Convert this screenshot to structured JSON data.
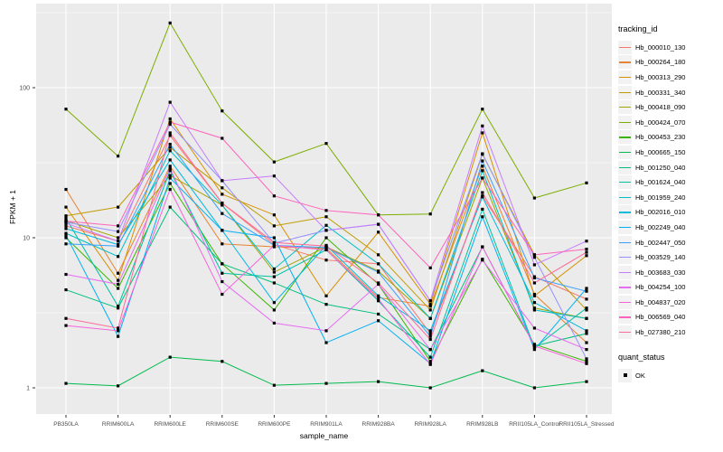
{
  "chart_data": {
    "type": "line",
    "xlabel": "sample_name",
    "ylabel": "FPKM + 1",
    "y_scale": "log10",
    "y_ticks": [
      1,
      10,
      100
    ],
    "y_minor_breaks": [
      3.162,
      31.62,
      316.2
    ],
    "panel_bg": "#EBEBEB",
    "grid_color": "#FFFFFF",
    "point_color": "#000000",
    "axis_text_color": "#4D4D4D",
    "legend": {
      "series_title": "tracking_id",
      "status_title": "quant_status",
      "status_items": [
        {
          "label": "OK",
          "marker": "black-square"
        }
      ]
    },
    "categories": [
      "PB350LA",
      "RRIM600LA",
      "RRIM600LE",
      "RRIM600SE",
      "RRIM600PE",
      "RRIM901LA",
      "RRIM928BA",
      "RRIM928LA",
      "RRIM928LB",
      "RRII105LA_Control",
      "RRII105LA_Stressed"
    ],
    "series": [
      {
        "name": "Hb_000010_130",
        "color": "#F8766D",
        "values": [
          12.0,
          9.5,
          48,
          17,
          9.0,
          7.1,
          6.7,
          2.3,
          19,
          5.5,
          3.9
        ]
      },
      {
        "name": "Hb_000264_180",
        "color": "#EA8331",
        "values": [
          21,
          5.8,
          30,
          9.1,
          8.7,
          8.5,
          4.0,
          3.5,
          30,
          4.2,
          2.0
        ]
      },
      {
        "name": "Hb_000313_290",
        "color": "#D89000",
        "values": [
          16,
          5.2,
          62,
          19.5,
          14.2,
          4.1,
          10.9,
          3.6,
          50,
          4.1,
          7.6
        ]
      },
      {
        "name": "Hb_000331_340",
        "color": "#C09B00",
        "values": [
          14,
          16,
          40,
          21.5,
          12,
          13.8,
          7.7,
          3.3,
          36,
          7.7,
          3.3
        ]
      },
      {
        "name": "Hb_000418_090",
        "color": "#A3A500",
        "values": [
          13,
          10,
          26,
          16.5,
          5.9,
          8.7,
          6.0,
          2.9,
          25,
          3.4,
          2.9
        ]
      },
      {
        "name": "Hb_000424_070",
        "color": "#7CAE00",
        "values": [
          72,
          35,
          270,
          70,
          32,
          42.5,
          14.2,
          14.4,
          72,
          18.4,
          23.2
        ]
      },
      {
        "name": "Hb_000453_230",
        "color": "#39B600",
        "values": [
          10,
          4.6,
          23,
          6.7,
          3.3,
          10,
          4.9,
          1.5,
          7.2,
          1.95,
          1.5
        ]
      },
      {
        "name": "Hb_000665_150",
        "color": "#00BB4E",
        "values": [
          1.07,
          1.03,
          1.6,
          1.5,
          1.04,
          1.07,
          1.1,
          1.0,
          1.3,
          1.0,
          1.1
        ]
      },
      {
        "name": "Hb_001250_040",
        "color": "#00BF7D",
        "values": [
          4.5,
          3.4,
          16,
          6.7,
          5.0,
          3.6,
          3.1,
          1.8,
          8.7,
          1.9,
          2.3
        ]
      },
      {
        "name": "Hb_001624_040",
        "color": "#00C1A3",
        "values": [
          13.5,
          3.5,
          28,
          5.8,
          5.5,
          8.3,
          3.8,
          1.6,
          15.5,
          1.85,
          3.4
        ]
      },
      {
        "name": "Hb_001959_240",
        "color": "#00BFC4",
        "values": [
          10.7,
          7.5,
          38,
          16.5,
          6.2,
          12.1,
          6.7,
          2.9,
          28,
          3.3,
          2.9
        ]
      },
      {
        "name": "Hb_002016_010",
        "color": "#00BAE0",
        "values": [
          11.5,
          9.0,
          33,
          11.2,
          3.7,
          8.9,
          4.1,
          2.4,
          18.7,
          3.7,
          2.4
        ]
      },
      {
        "name": "Hb_002249_040",
        "color": "#00B0F6",
        "values": [
          10.4,
          2.2,
          25,
          11.2,
          10,
          2.0,
          2.8,
          1.45,
          13.8,
          1.8,
          4.6
        ]
      },
      {
        "name": "Hb_002447_050",
        "color": "#35A2FF",
        "values": [
          9.1,
          8.8,
          42,
          14.5,
          8.9,
          8.6,
          5.9,
          2.2,
          32.5,
          5.4,
          4.4
        ]
      },
      {
        "name": "Hb_003529_140",
        "color": "#9590FF",
        "values": [
          12.7,
          11,
          57,
          24,
          9.2,
          11.2,
          12.3,
          3.8,
          36.3,
          7.4,
          1.56
        ]
      },
      {
        "name": "Hb_003683_030",
        "color": "#C77CFF",
        "values": [
          12.5,
          9.5,
          80,
          24,
          25.8,
          11.2,
          12.3,
          3.8,
          55.6,
          6.6,
          9.5
        ]
      },
      {
        "name": "Hb_004254_100",
        "color": "#E76BF3",
        "values": [
          5.7,
          4.9,
          29,
          5.1,
          2.7,
          2.4,
          4.9,
          1.8,
          7.1,
          2.5,
          1.8
        ]
      },
      {
        "name": "Hb_004837_020",
        "color": "#FA62DB",
        "values": [
          2.6,
          2.4,
          21,
          4.2,
          8.9,
          8.3,
          3.9,
          1.43,
          8.7,
          1.9,
          1.45
        ]
      },
      {
        "name": "Hb_006569_040",
        "color": "#FF62BC",
        "values": [
          12.9,
          12,
          59,
          46,
          19,
          15.2,
          14.2,
          6.3,
          25,
          7.7,
          8.4
        ]
      },
      {
        "name": "Hb_027380_210",
        "color": "#FF6A98",
        "values": [
          2.9,
          2.5,
          50,
          17,
          9.3,
          8.8,
          5.0,
          2.1,
          20,
          5.0,
          8.0
        ]
      }
    ]
  }
}
